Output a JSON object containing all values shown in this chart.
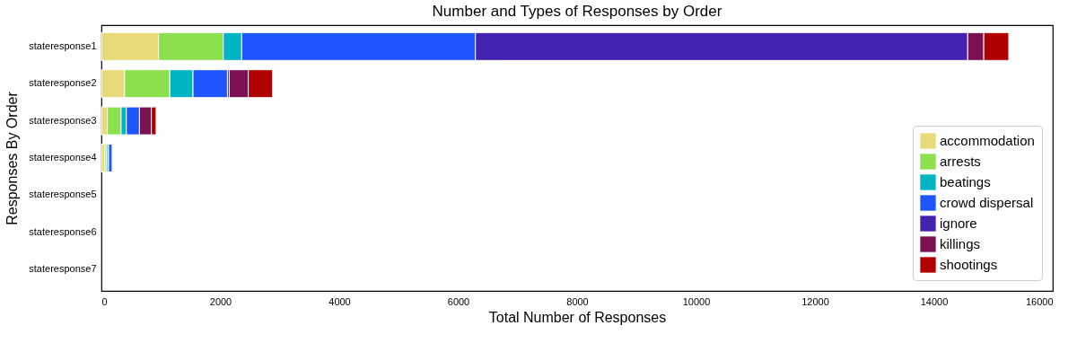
{
  "chart_data": {
    "type": "bar",
    "orientation": "horizontal",
    "stacked": true,
    "title": "Number and Types of Responses by Order",
    "xlabel": "Total Number of Responses",
    "ylabel": "Responses By Order",
    "categories": [
      "stateresponse1",
      "stateresponse2",
      "stateresponse3",
      "stateresponse4",
      "stateresponse5",
      "stateresponse6",
      "stateresponse7"
    ],
    "series": [
      {
        "name": "accommodation",
        "color": "#e8da78",
        "values": [
          960,
          390,
          100,
          60,
          0,
          0,
          0
        ]
      },
      {
        "name": "arrests",
        "color": "#8ce04e",
        "values": [
          1090,
          760,
          230,
          30,
          0,
          0,
          0
        ]
      },
      {
        "name": "beatings",
        "color": "#00b4c4",
        "values": [
          310,
          390,
          90,
          30,
          0,
          0,
          0
        ]
      },
      {
        "name": "crowd dispersal",
        "color": "#1e55fd",
        "values": [
          3930,
          580,
          220,
          60,
          0,
          0,
          0
        ]
      },
      {
        "name": "ignore",
        "color": "#4422b0",
        "values": [
          8280,
          30,
          null,
          0,
          0,
          0,
          0
        ]
      },
      {
        "name": "killings",
        "color": "#7b1052",
        "values": [
          270,
          320,
          200,
          0,
          0,
          0,
          0
        ]
      },
      {
        "name": "shootings",
        "color": "#b00000",
        "values": [
          420,
          410,
          80,
          0,
          0,
          0,
          0
        ]
      }
    ],
    "xlim": [
      0,
      16000
    ],
    "xticks": [
      0,
      2000,
      4000,
      6000,
      8000,
      10000,
      12000,
      14000,
      16000
    ],
    "grid": false,
    "legend": "bottom right"
  }
}
